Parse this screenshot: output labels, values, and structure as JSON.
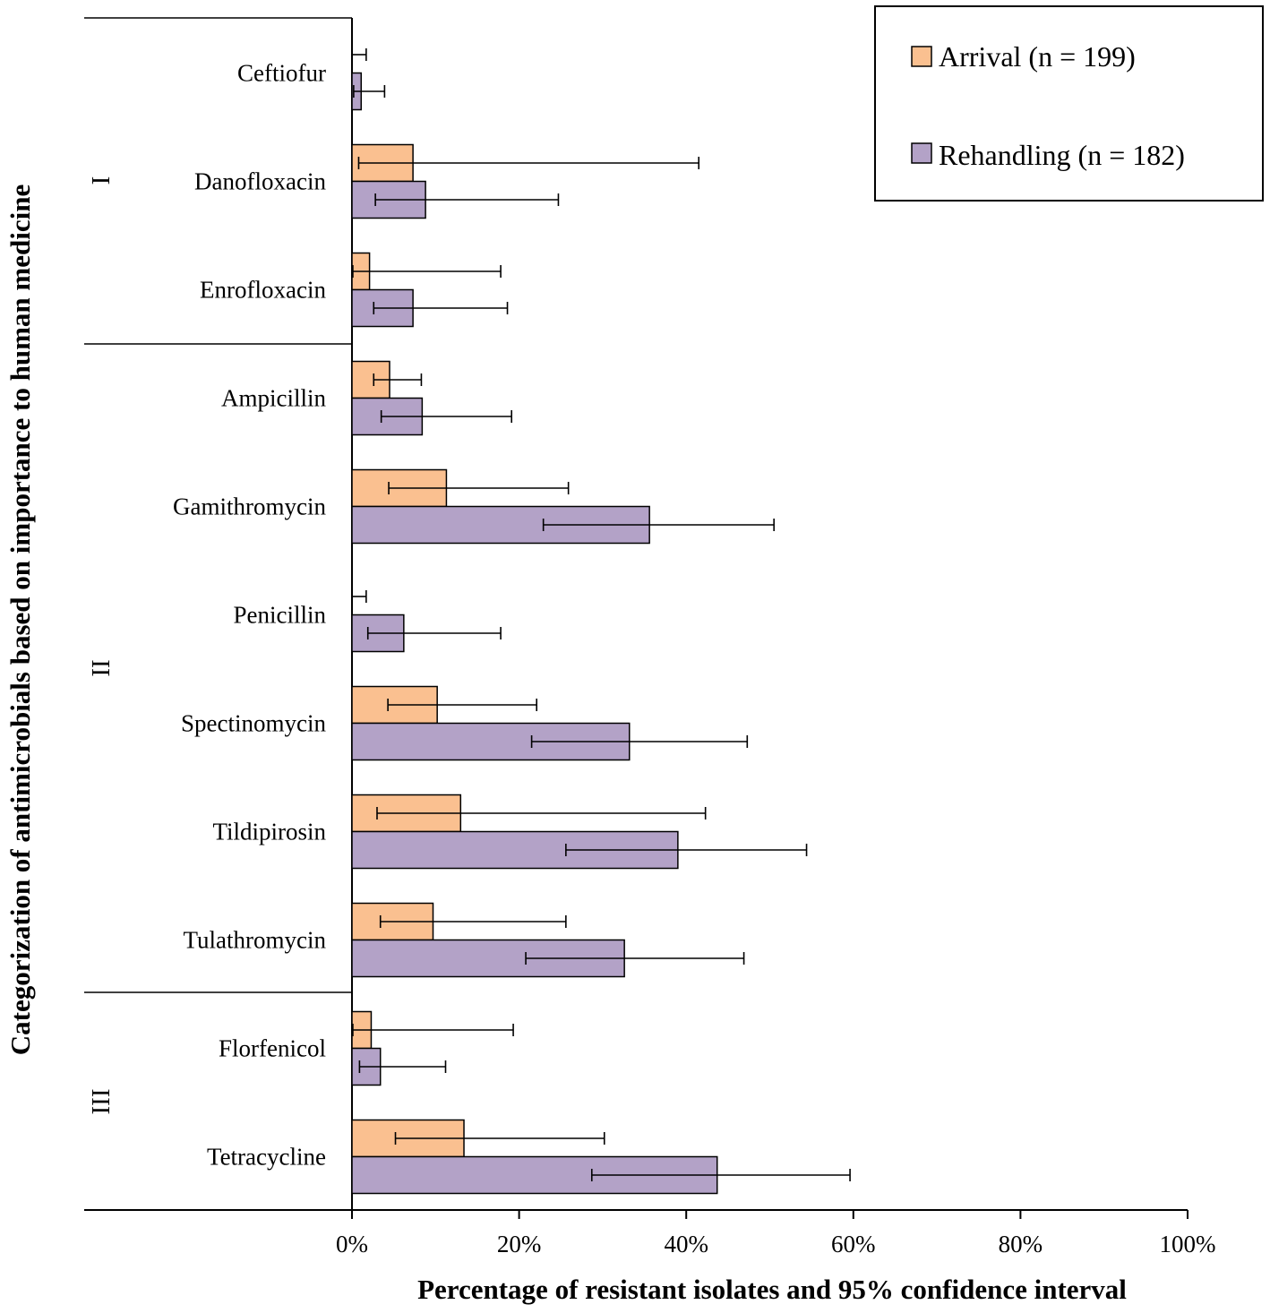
{
  "chart_data": {
    "type": "bar",
    "orientation": "horizontal",
    "title": "",
    "xlabel": "Percentage of resistant isolates and 95% confidence interval",
    "ylabel": "Categorization of antimicrobials based on importance to human medicine",
    "xlim": [
      0,
      100
    ],
    "xticks": [
      "0%",
      "20%",
      "40%",
      "60%",
      "80%",
      "100%"
    ],
    "xtick_values": [
      0,
      20,
      40,
      60,
      80,
      100
    ],
    "grid": false,
    "legend_position": "top-right",
    "categories": [
      "Ceftiofur",
      "Danofloxacin",
      "Enrofloxacin",
      "Ampicillin",
      "Gamithromycin",
      "Penicillin",
      "Spectinomycin",
      "Tildipirosin",
      "Tulathromycin",
      "Florfenicol",
      "Tetracycline"
    ],
    "groups": [
      {
        "label": "I",
        "categories": [
          "Ceftiofur",
          "Danofloxacin",
          "Enrofloxacin"
        ]
      },
      {
        "label": "II",
        "categories": [
          "Ampicillin",
          "Gamithromycin",
          "Penicillin",
          "Spectinomycin",
          "Tildipirosin",
          "Tulathromycin"
        ]
      },
      {
        "label": "III",
        "categories": [
          "Florfenicol",
          "Tetracycline"
        ]
      }
    ],
    "series": [
      {
        "name": "Arrival (n = 199)",
        "color": "#FAC090",
        "values": [
          0,
          7.3,
          2.1,
          4.5,
          11.3,
          0,
          10.2,
          13.0,
          9.7,
          2.3,
          13.4
        ],
        "ci_low": [
          0,
          0.8,
          0.1,
          2.6,
          4.4,
          0,
          4.3,
          3.0,
          3.4,
          0.1,
          5.2
        ],
        "ci_high": [
          1.7,
          41.5,
          17.8,
          8.3,
          25.9,
          1.7,
          22.1,
          42.3,
          25.6,
          19.3,
          30.2
        ]
      },
      {
        "name": "Rehandling (n = 182)",
        "color": "#B3A2C7",
        "values": [
          1.1,
          8.8,
          7.3,
          8.4,
          35.6,
          6.2,
          33.2,
          39.0,
          32.6,
          3.4,
          43.7
        ],
        "ci_low": [
          0.2,
          2.8,
          2.6,
          3.5,
          22.9,
          1.9,
          21.5,
          25.6,
          20.8,
          0.9,
          28.7
        ],
        "ci_high": [
          3.9,
          24.7,
          18.6,
          19.1,
          50.5,
          17.8,
          47.3,
          54.4,
          46.9,
          11.2,
          59.6
        ]
      }
    ]
  }
}
